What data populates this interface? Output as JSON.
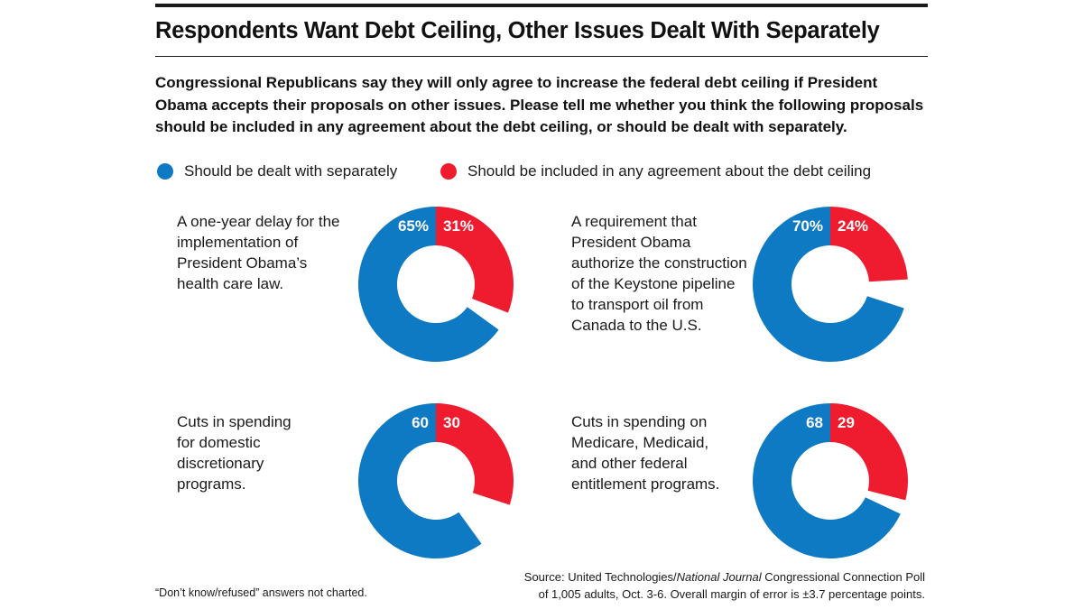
{
  "colors": {
    "separately": "#0F7AC4",
    "included": "#EE1C2E"
  },
  "chart_data": {
    "title": "Respondents Want Debt Ceiling, Other Issues Dealt With Separately",
    "subtitle": "Congressional Republicans say they will only agree to increase the federal debt ceiling if President Obama accepts their proposals on other issues. Please tell me whether you think the following proposals should be included in any agreement about the debt ceiling, or should be dealt with separately.",
    "legend": [
      {
        "name": "Should be dealt with separately",
        "color": "#0F7AC4"
      },
      {
        "name": "Should be included in any agreement about the debt ceiling",
        "color": "#EE1C2E"
      }
    ],
    "charts": [
      {
        "type": "pie",
        "label": "A one-year delay for the implementation of President Obama’s health care law.",
        "slices": [
          {
            "name": "Should be dealt with separately",
            "value": 65,
            "display": "65%"
          },
          {
            "name": "Should be included in any agreement about the debt ceiling",
            "value": 31,
            "display": "31%"
          }
        ]
      },
      {
        "type": "pie",
        "label": "A requirement that President Obama authorize the construction of the Keystone pipeline to transport oil from Canada to the U.S.",
        "slices": [
          {
            "name": "Should be dealt with separately",
            "value": 70,
            "display": "70%"
          },
          {
            "name": "Should be included in any agreement about the debt ceiling",
            "value": 24,
            "display": "24%"
          }
        ]
      },
      {
        "type": "pie",
        "label": "Cuts in spending for domestic discretionary programs.",
        "slices": [
          {
            "name": "Should be dealt with separately",
            "value": 60,
            "display": "60"
          },
          {
            "name": "Should be included in any agreement about the debt ceiling",
            "value": 30,
            "display": "30"
          }
        ]
      },
      {
        "type": "pie",
        "label": "Cuts in spending on Medicare, Medicaid, and other federal entitlement programs.",
        "slices": [
          {
            "name": "Should be dealt with separately",
            "value": 68,
            "display": "68"
          },
          {
            "name": "Should be included in any agreement about the debt ceiling",
            "value": 29,
            "display": "29"
          }
        ]
      }
    ],
    "note": "“Don’t know/refused” answers not charted.",
    "source_prefix": "Source: United Technologies/",
    "source_italic": "National Journal",
    "source_suffix": " Congressional Connection Poll",
    "source_line2": "of 1,005 adults, Oct. 3-6. Overall margin of error is ±3.7 percentage points."
  }
}
